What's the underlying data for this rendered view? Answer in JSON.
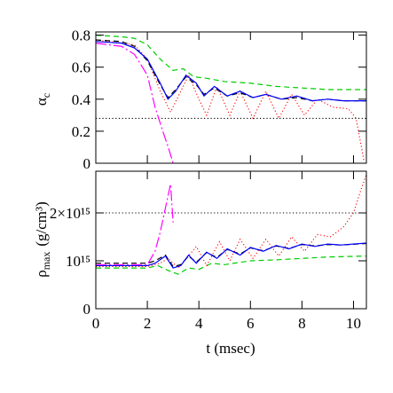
{
  "chart_data": [
    {
      "type": "line",
      "ylabel": {
        "symbol": "α",
        "subscript": "c"
      },
      "xlim": [
        0,
        10.5
      ],
      "xticks": [
        0,
        2,
        4,
        6,
        8,
        10
      ],
      "ylim": [
        0,
        0.82
      ],
      "yticks": [
        0,
        0.2,
        0.4,
        0.6,
        0.8
      ],
      "series": [
        {
          "color": "#000000",
          "style": "dotted",
          "x": [
            0,
            10.5
          ],
          "values": [
            0.28,
            0.28
          ]
        },
        {
          "color": "#00cc00",
          "style": "dashed",
          "x": [
            0,
            1,
            1.5,
            2,
            2.5,
            3,
            3.4,
            3.8,
            4.3,
            5,
            6,
            7,
            8,
            9,
            10.5
          ],
          "values": [
            0.8,
            0.79,
            0.78,
            0.74,
            0.65,
            0.58,
            0.59,
            0.54,
            0.53,
            0.51,
            0.5,
            0.48,
            0.47,
            0.46,
            0.46
          ]
        },
        {
          "color": "#ff0000",
          "style": "dotted",
          "x": [
            0,
            1.5,
            2,
            2.5,
            2.9,
            3.3,
            3.6,
            4.0,
            4.3,
            4.7,
            5.2,
            5.6,
            6.1,
            6.6,
            7.1,
            7.6,
            8.1,
            8.6,
            9.2,
            9.8,
            10.1,
            10.4
          ],
          "values": [
            0.77,
            0.74,
            0.65,
            0.45,
            0.32,
            0.45,
            0.55,
            0.4,
            0.3,
            0.48,
            0.3,
            0.45,
            0.28,
            0.45,
            0.28,
            0.43,
            0.3,
            0.4,
            0.35,
            0.34,
            0.28,
            0.02
          ]
        },
        {
          "color": "#000000",
          "style": "dashed",
          "x": [
            0,
            1,
            1.5,
            2,
            2.5,
            2.8,
            3.1,
            3.5,
            3.9,
            4.2,
            4.6,
            5.1,
            5.6,
            6.1,
            6.6,
            7.2,
            7.8,
            8.4,
            9,
            9.6,
            10.5
          ],
          "values": [
            0.77,
            0.76,
            0.73,
            0.64,
            0.49,
            0.41,
            0.46,
            0.54,
            0.49,
            0.43,
            0.47,
            0.42,
            0.44,
            0.41,
            0.43,
            0.4,
            0.41,
            0.39,
            0.4,
            0.39,
            0.39
          ]
        },
        {
          "color": "#0000ff",
          "style": "solid",
          "x": [
            0,
            1,
            1.5,
            2,
            2.5,
            2.8,
            3.1,
            3.5,
            3.9,
            4.2,
            4.6,
            5.1,
            5.6,
            6.1,
            6.6,
            7.2,
            7.8,
            8.4,
            9,
            9.6,
            10.5
          ],
          "values": [
            0.76,
            0.75,
            0.72,
            0.65,
            0.5,
            0.4,
            0.45,
            0.55,
            0.5,
            0.42,
            0.48,
            0.42,
            0.45,
            0.41,
            0.43,
            0.4,
            0.42,
            0.39,
            0.4,
            0.39,
            0.39
          ]
        },
        {
          "color": "#ff00ff",
          "style": "dash-dot",
          "x": [
            0,
            1,
            1.5,
            2,
            2.3,
            2.6,
            2.85,
            3.0
          ],
          "values": [
            0.75,
            0.73,
            0.68,
            0.55,
            0.35,
            0.2,
            0.08,
            0
          ]
        }
      ]
    },
    {
      "type": "line",
      "ylabel": {
        "symbol": "ρ",
        "subscript": "max",
        "unit": "(g/cm³)"
      },
      "xlabel": "t (msec)",
      "xlim": [
        0,
        10.5
      ],
      "xticks": [
        0,
        2,
        4,
        6,
        8,
        10
      ],
      "ylim": [
        0,
        2870000000000000.0
      ],
      "yticks": [
        0,
        {
          "value": 1000000000000000.0,
          "label": "10¹⁵"
        },
        {
          "value": 2000000000000000.0,
          "label": "2×10¹⁵"
        }
      ],
      "series": [
        {
          "color": "#000000",
          "style": "dotted",
          "x": [
            0,
            10.5
          ],
          "values": [
            2000000000000000.0,
            2000000000000000.0
          ]
        },
        {
          "color": "#00cc00",
          "style": "dashed",
          "x": [
            0,
            2,
            2.4,
            2.8,
            3.2,
            3.6,
            4,
            4.5,
            5,
            6,
            7,
            8,
            9,
            10.5
          ],
          "values": [
            850000000000000.0,
            850000000000000.0,
            900000000000000.0,
            800000000000000.0,
            720000000000000.0,
            850000000000000.0,
            820000000000000.0,
            950000000000000.0,
            920000000000000.0,
            1000000000000000.0,
            1020000000000000.0,
            1050000000000000.0,
            1080000000000000.0,
            1100000000000000.0
          ]
        },
        {
          "color": "#ff0000",
          "style": "dotted",
          "x": [
            0,
            2,
            2.5,
            2.8,
            3.2,
            3.6,
            3.9,
            4.3,
            4.8,
            5.2,
            5.6,
            6.1,
            6.6,
            7.1,
            7.6,
            8.1,
            8.6,
            9.1,
            9.6,
            10.0,
            10.3,
            10.5
          ],
          "values": [
            880000000000000.0,
            880000000000000.0,
            950000000000000.0,
            1050000000000000.0,
            850000000000000.0,
            1100000000000000.0,
            1300000000000000.0,
            900000000000000.0,
            1400000000000000.0,
            1000000000000000.0,
            1450000000000000.0,
            1050000000000000.0,
            1450000000000000.0,
            1100000000000000.0,
            1500000000000000.0,
            1200000000000000.0,
            1550000000000000.0,
            1500000000000000.0,
            1700000000000000.0,
            2000000000000000.0,
            2500000000000000.0,
            2800000000000000.0
          ]
        },
        {
          "color": "#000000",
          "style": "dashed",
          "x": [
            0,
            2,
            2.3,
            2.7,
            3.0,
            3.3,
            3.6,
            3.9,
            4.3,
            4.7,
            5.1,
            5.6,
            6.0,
            6.5,
            7.0,
            7.5,
            8.0,
            8.5,
            9,
            9.5,
            10.5
          ],
          "values": [
            950000000000000.0,
            950000000000000.0,
            1000000000000000.0,
            1120000000000000.0,
            880000000000000.0,
            920000000000000.0,
            1100000000000000.0,
            970000000000000.0,
            1170000000000000.0,
            1070000000000000.0,
            1240000000000000.0,
            1140000000000000.0,
            1270000000000000.0,
            1210000000000000.0,
            1310000000000000.0,
            1260000000000000.0,
            1340000000000000.0,
            1310000000000000.0,
            1340000000000000.0,
            1330000000000000.0,
            1360000000000000.0
          ]
        },
        {
          "color": "#0000ff",
          "style": "solid",
          "x": [
            0,
            2,
            2.3,
            2.7,
            3.0,
            3.3,
            3.6,
            3.9,
            4.3,
            4.7,
            5.1,
            5.6,
            6.0,
            6.5,
            7.0,
            7.5,
            8.0,
            8.5,
            9,
            9.5,
            10.5
          ],
          "values": [
            900000000000000.0,
            900000000000000.0,
            950000000000000.0,
            1100000000000000.0,
            850000000000000.0,
            900000000000000.0,
            1120000000000000.0,
            950000000000000.0,
            1180000000000000.0,
            1050000000000000.0,
            1250000000000000.0,
            1120000000000000.0,
            1280000000000000.0,
            1200000000000000.0,
            1320000000000000.0,
            1250000000000000.0,
            1350000000000000.0,
            1300000000000000.0,
            1350000000000000.0,
            1330000000000000.0,
            1370000000000000.0
          ]
        },
        {
          "color": "#ff00ff",
          "style": "dash-dot",
          "x": [
            0,
            2,
            2.3,
            2.5,
            2.7,
            2.9,
            3.0
          ],
          "values": [
            920000000000000.0,
            920000000000000.0,
            1200000000000000.0,
            1600000000000000.0,
            2100000000000000.0,
            2600000000000000.0,
            1800000000000000.0
          ]
        }
      ]
    }
  ]
}
